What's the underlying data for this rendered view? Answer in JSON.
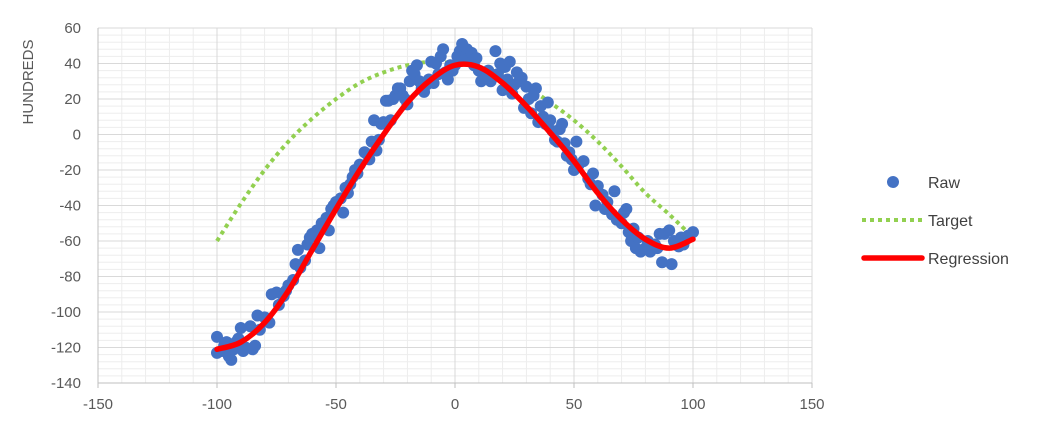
{
  "chart_data": {
    "type": "scatter",
    "title": "",
    "xlabel": "",
    "ylabel": "HUNDREDS",
    "xlim": [
      -150,
      150
    ],
    "ylim": [
      -140,
      60
    ],
    "x_major_step": 50,
    "y_major_step": 20,
    "grid": "major and minor",
    "legend_position": "right",
    "colors": {
      "raw": "#4472C4",
      "target": "#92D050",
      "regression": "#FF0000",
      "grid_major": "#D9D9D9",
      "grid_minor": "#EDEDED",
      "axis": "#BFBFBF"
    },
    "x_tick_labels": [
      "-150",
      "-100",
      "-50",
      "0",
      "50",
      "100",
      "150"
    ],
    "y_tick_labels": [
      "60",
      "40",
      "20",
      "0",
      "-20",
      "-40",
      "-60",
      "-80",
      "-100",
      "-120",
      "-140"
    ],
    "legend": [
      {
        "key": "raw",
        "label": "Raw",
        "style": "marker"
      },
      {
        "key": "target",
        "label": "Target",
        "style": "dotted"
      },
      {
        "key": "regression",
        "label": "Regression",
        "style": "line"
      }
    ],
    "series": [
      {
        "name": "Raw",
        "type": "scatter",
        "points": [
          [
            -100,
            -114
          ],
          [
            -100,
            -123
          ],
          [
            -98,
            -122
          ],
          [
            -97,
            -119
          ],
          [
            -96,
            -117
          ],
          [
            -95,
            -125
          ],
          [
            -94,
            -127
          ],
          [
            -93,
            -121
          ],
          [
            -92,
            -117
          ],
          [
            -91,
            -115
          ],
          [
            -90,
            -109
          ],
          [
            -89,
            -122
          ],
          [
            -88,
            -120
          ],
          [
            -86,
            -108
          ],
          [
            -85,
            -121
          ],
          [
            -84,
            -119
          ],
          [
            -83,
            -102
          ],
          [
            -82,
            -110
          ],
          [
            -80,
            -103
          ],
          [
            -79,
            -104
          ],
          [
            -78,
            -106
          ],
          [
            -77,
            -90
          ],
          [
            -75,
            -89
          ],
          [
            -74,
            -96
          ],
          [
            -72,
            -91
          ],
          [
            -71,
            -88
          ],
          [
            -70,
            -85
          ],
          [
            -68,
            -82
          ],
          [
            -67,
            -73
          ],
          [
            -66,
            -65
          ],
          [
            -65,
            -75
          ],
          [
            -63,
            -71
          ],
          [
            -62,
            -62
          ],
          [
            -61,
            -58
          ],
          [
            -60,
            -56
          ],
          [
            -58,
            -54
          ],
          [
            -57,
            -64
          ],
          [
            -56,
            -50
          ],
          [
            -54,
            -47
          ],
          [
            -53,
            -54
          ],
          [
            -52,
            -42
          ],
          [
            -51,
            -40
          ],
          [
            -50,
            -38
          ],
          [
            -48,
            -36
          ],
          [
            -47,
            -44
          ],
          [
            -46,
            -30
          ],
          [
            -45,
            -33
          ],
          [
            -44,
            -28
          ],
          [
            -43,
            -24
          ],
          [
            -42,
            -20
          ],
          [
            -41,
            -22
          ],
          [
            -40,
            -17
          ],
          [
            -38,
            -10
          ],
          [
            -37,
            -11
          ],
          [
            -36,
            -14
          ],
          [
            -35,
            -4
          ],
          [
            -34,
            8
          ],
          [
            -33,
            -9
          ],
          [
            -32,
            -3
          ],
          [
            -31,
            6
          ],
          [
            -30,
            7
          ],
          [
            -29,
            19
          ],
          [
            -28,
            19
          ],
          [
            -27,
            8
          ],
          [
            -26,
            20
          ],
          [
            -25,
            22
          ],
          [
            -24,
            26
          ],
          [
            -23,
            26
          ],
          [
            -22,
            22
          ],
          [
            -21,
            20
          ],
          [
            -20,
            17
          ],
          [
            -19,
            30
          ],
          [
            -18,
            36
          ],
          [
            -17,
            34
          ],
          [
            -16,
            39
          ],
          [
            -15,
            30
          ],
          [
            -14,
            26
          ],
          [
            -13,
            24
          ],
          [
            -12,
            28
          ],
          [
            -11,
            31
          ],
          [
            -10,
            41
          ],
          [
            -9,
            29
          ],
          [
            -8,
            40
          ],
          [
            -7,
            34
          ],
          [
            -6,
            44
          ],
          [
            -5,
            48
          ],
          [
            -4,
            35
          ],
          [
            -3,
            31
          ],
          [
            -2,
            39
          ],
          [
            -1,
            36
          ],
          [
            0,
            39
          ],
          [
            1,
            44
          ],
          [
            2,
            47
          ],
          [
            3,
            51
          ],
          [
            4,
            42
          ],
          [
            5,
            48
          ],
          [
            6,
            43
          ],
          [
            7,
            46
          ],
          [
            8,
            39
          ],
          [
            9,
            43
          ],
          [
            10,
            36
          ],
          [
            11,
            30
          ],
          [
            12,
            33
          ],
          [
            13,
            32
          ],
          [
            14,
            36
          ],
          [
            15,
            30
          ],
          [
            17,
            47
          ],
          [
            18,
            34
          ],
          [
            19,
            40
          ],
          [
            20,
            25
          ],
          [
            21,
            38
          ],
          [
            22,
            31
          ],
          [
            23,
            41
          ],
          [
            24,
            23
          ],
          [
            25,
            28
          ],
          [
            26,
            35
          ],
          [
            27,
            30
          ],
          [
            28,
            32
          ],
          [
            29,
            15
          ],
          [
            30,
            27
          ],
          [
            31,
            20
          ],
          [
            32,
            12
          ],
          [
            33,
            22
          ],
          [
            34,
            26
          ],
          [
            35,
            7
          ],
          [
            36,
            16
          ],
          [
            37,
            10
          ],
          [
            38,
            6
          ],
          [
            39,
            18
          ],
          [
            40,
            8
          ],
          [
            41,
            2
          ],
          [
            42,
            -3
          ],
          [
            43,
            -4
          ],
          [
            44,
            3
          ],
          [
            45,
            6
          ],
          [
            46,
            -5
          ],
          [
            47,
            -12
          ],
          [
            48,
            -10
          ],
          [
            49,
            -14
          ],
          [
            50,
            -20
          ],
          [
            51,
            -4
          ],
          [
            52,
            -17
          ],
          [
            54,
            -15
          ],
          [
            56,
            -25
          ],
          [
            57,
            -28
          ],
          [
            58,
            -22
          ],
          [
            59,
            -40
          ],
          [
            60,
            -29
          ],
          [
            62,
            -34
          ],
          [
            63,
            -42
          ],
          [
            64,
            -38
          ],
          [
            66,
            -45
          ],
          [
            67,
            -32
          ],
          [
            68,
            -48
          ],
          [
            70,
            -50
          ],
          [
            71,
            -44
          ],
          [
            72,
            -42
          ],
          [
            73,
            -55
          ],
          [
            74,
            -60
          ],
          [
            75,
            -53
          ],
          [
            76,
            -64
          ],
          [
            77,
            -58
          ],
          [
            78,
            -66
          ],
          [
            80,
            -64
          ],
          [
            81,
            -60
          ],
          [
            82,
            -66
          ],
          [
            84,
            -62
          ],
          [
            85,
            -64
          ],
          [
            86,
            -56
          ],
          [
            87,
            -72
          ],
          [
            88,
            -56
          ],
          [
            90,
            -54
          ],
          [
            91,
            -73
          ],
          [
            92,
            -60
          ],
          [
            94,
            -63
          ],
          [
            95,
            -58
          ],
          [
            96,
            -62
          ],
          [
            98,
            -57
          ],
          [
            100,
            -55
          ]
        ]
      },
      {
        "name": "Target",
        "type": "line",
        "x": [
          -100,
          -90,
          -80,
          -70,
          -60,
          -50,
          -40,
          -30,
          -20,
          -10,
          0,
          10,
          20,
          30,
          40,
          50,
          60,
          70,
          80,
          90,
          100
        ],
        "y": [
          -60,
          -39,
          -20,
          -4,
          9,
          20,
          29,
          35,
          39,
          41,
          40,
          38,
          34,
          27,
          18,
          8,
          -4,
          -18,
          -33,
          -45,
          -58
        ]
      },
      {
        "name": "Regression",
        "type": "line",
        "x": [
          -100,
          -90,
          -80,
          -70,
          -60,
          -50,
          -40,
          -30,
          -20,
          -10,
          0,
          10,
          20,
          30,
          40,
          50,
          60,
          70,
          80,
          90,
          100
        ],
        "y": [
          -121,
          -117,
          -106,
          -88,
          -65,
          -42,
          -20,
          0,
          18,
          31,
          39,
          38,
          29,
          16,
          1,
          -15,
          -33,
          -48,
          -59,
          -64,
          -59
        ]
      }
    ]
  }
}
